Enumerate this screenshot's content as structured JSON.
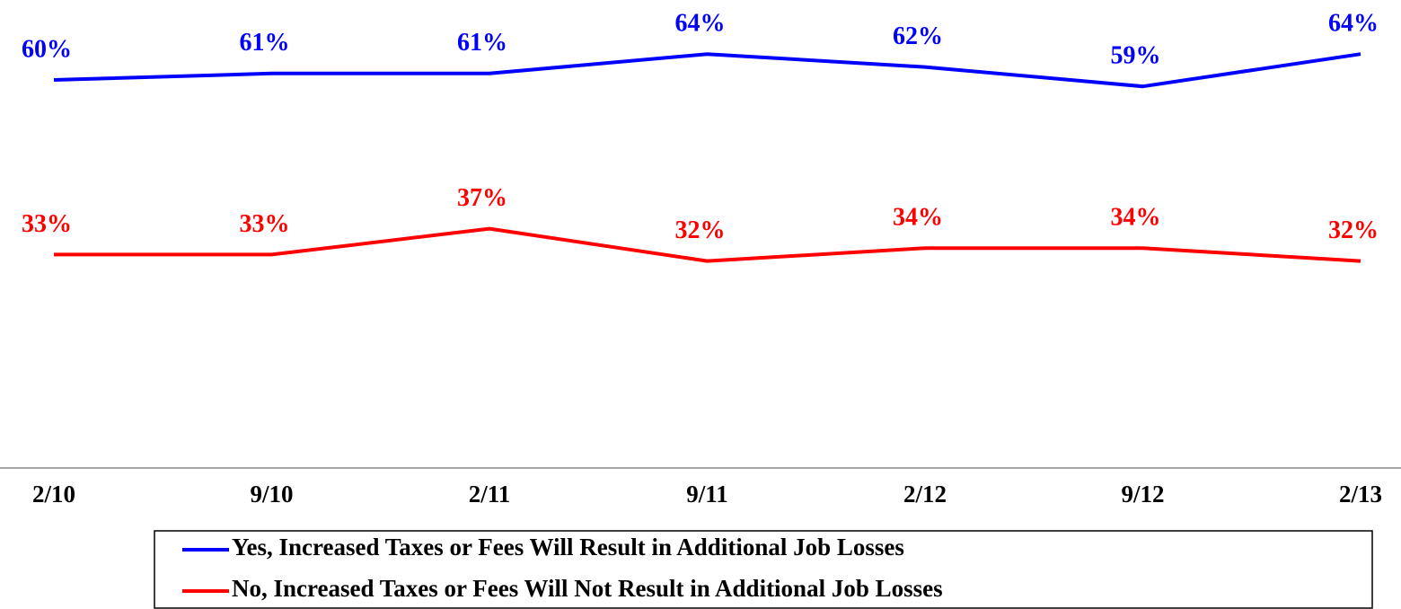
{
  "chart_data": {
    "type": "line",
    "categories": [
      "2/10",
      "9/10",
      "2/11",
      "9/11",
      "2/12",
      "9/12",
      "2/13"
    ],
    "series": [
      {
        "name": "Yes, Increased Taxes or Fees Will Result in Additional Job Losses",
        "color": "#0000ff",
        "values": [
          60,
          61,
          61,
          64,
          62,
          59,
          64
        ],
        "value_labels": [
          "60%",
          "61%",
          "61%",
          "64%",
          "62%",
          "59%",
          "64%"
        ]
      },
      {
        "name": "No, Increased Taxes or Fees Will Not Result in Additional Job Losses",
        "color": "#ff0000",
        "values": [
          33,
          33,
          37,
          32,
          34,
          34,
          32
        ],
        "value_labels": [
          "33%",
          "33%",
          "37%",
          "32%",
          "34%",
          "34%",
          "32%"
        ]
      }
    ],
    "ylim": [
      0,
      70
    ]
  }
}
